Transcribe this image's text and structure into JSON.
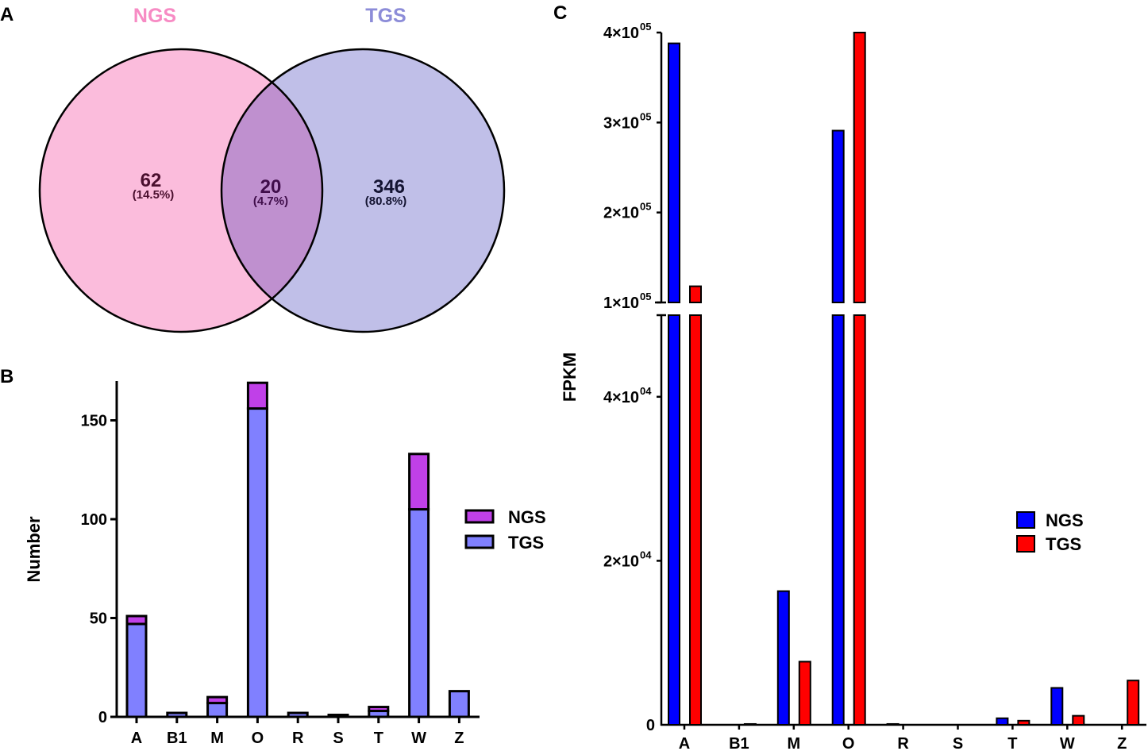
{
  "panels": {
    "a": "A",
    "b": "B",
    "c": "C"
  },
  "chart_data": [
    {
      "type": "venn",
      "panel": "A",
      "sets": [
        {
          "name": "NGS",
          "color": "#fbbcdc",
          "label_color": "#f78bc4"
        },
        {
          "name": "TGS",
          "color": "#c0bfe8",
          "label_color": "#8c8cd8"
        }
      ],
      "intersection_color": "#bf90cf",
      "regions": [
        {
          "sets": [
            "NGS"
          ],
          "count": "62",
          "percent": "(14.5%)",
          "text_color": "#4a0f2e"
        },
        {
          "sets": [
            "NGS",
            "TGS"
          ],
          "count": "20",
          "percent": "(4.7%)",
          "text_color": "#3f0d4a"
        },
        {
          "sets": [
            "TGS"
          ],
          "count": "346",
          "percent": "(80.8%)",
          "text_color": "#141432"
        }
      ]
    },
    {
      "type": "bar",
      "stacked": true,
      "panel": "B",
      "categories": [
        "A",
        "B1",
        "M",
        "O",
        "R",
        "S",
        "T",
        "W",
        "Z"
      ],
      "series": [
        {
          "name": "TGS",
          "color": "#8080ff",
          "values": [
            47,
            2,
            7,
            156,
            2,
            1,
            3,
            105,
            13
          ]
        },
        {
          "name": "NGS",
          "color": "#c040e8",
          "values": [
            4,
            0,
            3,
            13,
            0,
            0,
            2,
            28,
            0
          ]
        }
      ],
      "ylabel": "Number",
      "ylim": [
        0,
        170
      ],
      "yticks": [
        "0",
        "50",
        "100",
        "150"
      ],
      "legend": [
        "NGS",
        "TGS"
      ],
      "legend_position": "right"
    },
    {
      "type": "bar",
      "panel": "C",
      "categories": [
        "A",
        "B1",
        "M",
        "O",
        "R",
        "S",
        "T",
        "W",
        "Z"
      ],
      "series": [
        {
          "name": "NGS",
          "color": "#0000ff",
          "values": [
            388000,
            0,
            16300,
            291000,
            100,
            0,
            800,
            4500,
            0
          ]
        },
        {
          "name": "TGS",
          "color": "#ff0000",
          "values": [
            118000,
            100,
            7700,
            400000,
            0,
            0,
            500,
            1100,
            5400
          ]
        }
      ],
      "ylabel": "FPKM",
      "y_broken_axis": {
        "lower": [
          0,
          50000
        ],
        "upper": [
          100000,
          400000
        ]
      },
      "yticks_lower": [
        {
          "value": 0,
          "label": "0"
        },
        {
          "value": 20000,
          "label": "2×10",
          "exp": "04"
        },
        {
          "value": 40000,
          "label": "4×10",
          "exp": "04"
        }
      ],
      "yticks_upper": [
        {
          "value": 100000,
          "label": "1×10",
          "exp": "05"
        },
        {
          "value": 200000,
          "label": "2×10",
          "exp": "05"
        },
        {
          "value": 300000,
          "label": "3×10",
          "exp": "05"
        },
        {
          "value": 400000,
          "label": "4×10",
          "exp": "05"
        }
      ],
      "legend": [
        "NGS",
        "TGS"
      ],
      "legend_position": "right"
    }
  ]
}
